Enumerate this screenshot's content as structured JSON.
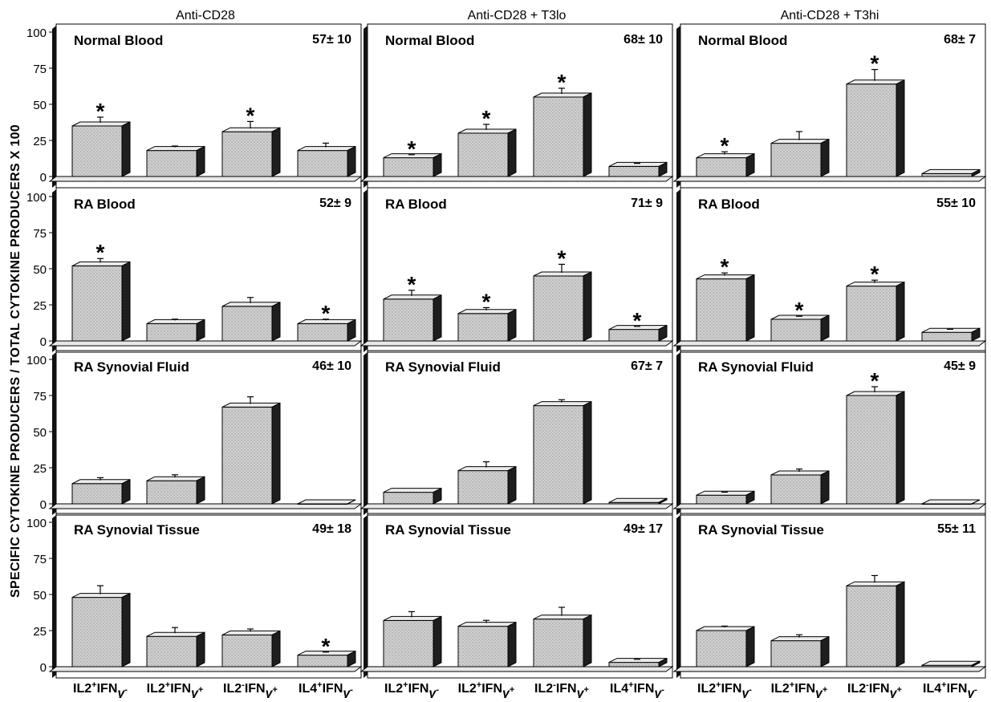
{
  "colors": {
    "bar_front": "#d3d3d3",
    "bar_top": "#ececec",
    "bar_side": "#1e1e1e",
    "floor": "#e8e8e8",
    "wall": "#111111",
    "ink": "#000000"
  },
  "chart_data": {
    "type": "bar",
    "style": "3d-bars-with-error-bars",
    "ylabel": "SPECIFIC CYTOKINE PRODUCERS / TOTAL CYTOKINE PRODUCERS X 100",
    "ylim": [
      0,
      100
    ],
    "yticks": [
      "0",
      "25",
      "50",
      "75",
      "100"
    ],
    "grid": false,
    "columns": [
      "Anti-CD28",
      "Anti-CD28 + T3lo",
      "Anti-CD28 + T3hi"
    ],
    "rows": [
      "Normal Blood",
      "RA Blood",
      "RA Synovial Fluid",
      "RA Synovial Tissue"
    ],
    "categories": [
      {
        "main": "IL2",
        "s1": "+",
        "mid": "IFN",
        "s2": "-"
      },
      {
        "main": "IL2",
        "s1": "+",
        "mid": "IFN",
        "s2": "+"
      },
      {
        "main": "IL2",
        "s1": "-",
        "mid": "IFN",
        "s2": "+"
      },
      {
        "main": "IL4",
        "s1": "+",
        "mid": "IFN",
        "s2": "-"
      }
    ],
    "gamma": "γ",
    "star_symbol": "*",
    "panels": [
      {
        "row": 0,
        "col": 0,
        "title": "Normal Blood",
        "total": "57± 10",
        "values": [
          35,
          18,
          31,
          18
        ],
        "errors": [
          5,
          2,
          6,
          4
        ],
        "stars": [
          true,
          false,
          true,
          false
        ]
      },
      {
        "row": 0,
        "col": 1,
        "title": "Normal Blood",
        "total": "68± 10",
        "values": [
          13,
          30,
          55,
          7
        ],
        "errors": [
          1,
          5,
          5,
          1
        ],
        "stars": [
          true,
          true,
          true,
          false
        ]
      },
      {
        "row": 0,
        "col": 2,
        "title": "Normal Blood",
        "total": "68± 7",
        "values": [
          13,
          23,
          64,
          2
        ],
        "errors": [
          3,
          7,
          9,
          0
        ],
        "stars": [
          true,
          false,
          true,
          false
        ]
      },
      {
        "row": 1,
        "col": 0,
        "title": "RA Blood",
        "total": "52± 9",
        "values": [
          52,
          12,
          24,
          12
        ],
        "errors": [
          4,
          2,
          5,
          2
        ],
        "stars": [
          true,
          false,
          false,
          true
        ]
      },
      {
        "row": 1,
        "col": 1,
        "title": "RA Blood",
        "total": "71± 9",
        "values": [
          29,
          19,
          45,
          8
        ],
        "errors": [
          5,
          3,
          7,
          1
        ],
        "stars": [
          true,
          true,
          true,
          true
        ]
      },
      {
        "row": 1,
        "col": 2,
        "title": "RA Blood",
        "total": "55± 10",
        "values": [
          43,
          15,
          38,
          6
        ],
        "errors": [
          3,
          1,
          3,
          1
        ],
        "stars": [
          true,
          true,
          true,
          false
        ]
      },
      {
        "row": 2,
        "col": 0,
        "title": "RA Synovial Fluid",
        "total": "46± 10",
        "values": [
          14,
          16,
          67,
          0
        ],
        "errors": [
          3,
          3,
          6,
          0
        ],
        "stars": [
          false,
          false,
          false,
          false
        ]
      },
      {
        "row": 2,
        "col": 1,
        "title": "RA Synovial Fluid",
        "total": "67± 7",
        "values": [
          8,
          23,
          68,
          1
        ],
        "errors": [
          0,
          5,
          3,
          0
        ],
        "stars": [
          false,
          false,
          false,
          false
        ]
      },
      {
        "row": 2,
        "col": 2,
        "title": "RA Synovial Fluid",
        "total": "45± 9",
        "values": [
          6,
          20,
          75,
          0
        ],
        "errors": [
          1,
          3,
          5,
          0
        ],
        "stars": [
          false,
          false,
          true,
          false
        ]
      },
      {
        "row": 3,
        "col": 0,
        "title": "RA Synovial Tissue",
        "total": "49± 18",
        "values": [
          48,
          21,
          22,
          8
        ],
        "errors": [
          7,
          5,
          3,
          1
        ],
        "stars": [
          false,
          false,
          false,
          true
        ]
      },
      {
        "row": 3,
        "col": 1,
        "title": "RA Synovial Tissue",
        "total": "49± 17",
        "values": [
          32,
          28,
          33,
          3
        ],
        "errors": [
          5,
          3,
          7,
          1
        ],
        "stars": [
          false,
          false,
          false,
          false
        ]
      },
      {
        "row": 3,
        "col": 2,
        "title": "RA Synovial Tissue",
        "total": "55± 11",
        "values": [
          25,
          18,
          56,
          1
        ],
        "errors": [
          2,
          3,
          6,
          0
        ],
        "stars": [
          false,
          false,
          false,
          false
        ]
      }
    ]
  }
}
